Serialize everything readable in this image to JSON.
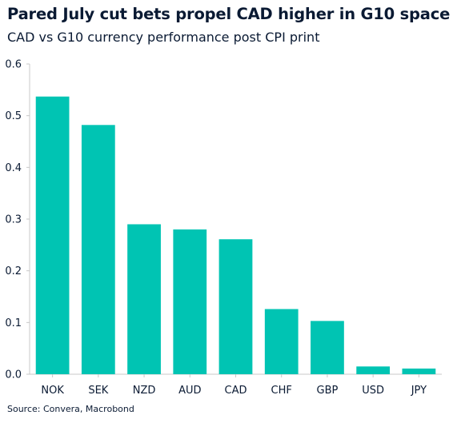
{
  "title": "Pared July cut bets propel CAD higher in G10 space",
  "subtitle": "CAD vs G10 currency performance post CPI print",
  "source": "Source: Convera, Macrobond",
  "colors": {
    "bar": "#00c4b3",
    "axis": "#c8c8c8",
    "text": "#0a1a33"
  },
  "chart_data": {
    "type": "bar",
    "categories": [
      "NOK",
      "SEK",
      "NZD",
      "AUD",
      "CAD",
      "CHF",
      "GBP",
      "USD",
      "JPY"
    ],
    "values": [
      0.537,
      0.482,
      0.29,
      0.28,
      0.261,
      0.126,
      0.103,
      0.015,
      0.011
    ],
    "ylim": [
      0,
      0.6
    ],
    "yticks": [
      "0.0",
      "0.1",
      "0.2",
      "0.3",
      "0.4",
      "0.5",
      "0.6"
    ],
    "xlabel": "",
    "ylabel": "",
    "grid": false,
    "legend": "none"
  }
}
